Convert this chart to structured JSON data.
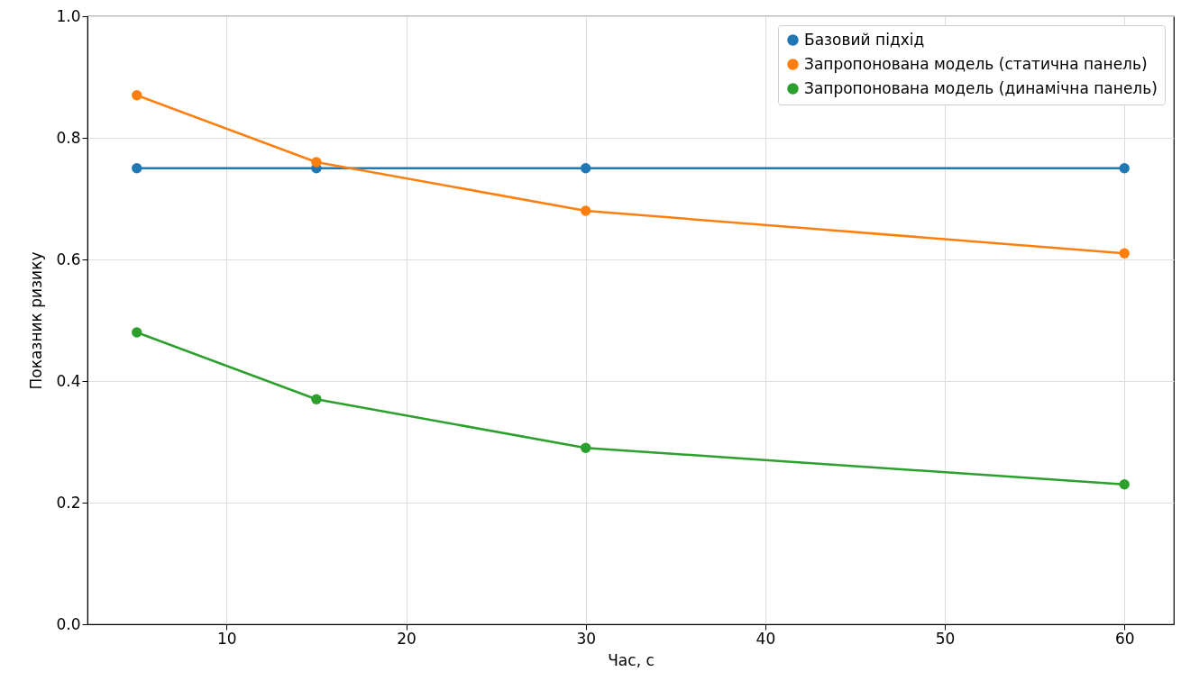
{
  "chart_data": {
    "type": "line",
    "xlabel": "Час, с",
    "ylabel": "Показник ризику",
    "x": [
      5,
      15,
      30,
      60
    ],
    "series": [
      {
        "name": "Базовий підхід",
        "color": "#1f77b4",
        "values": [
          0.75,
          0.75,
          0.75,
          0.75
        ]
      },
      {
        "name": "Запропонована модель (статична панель)",
        "color": "#ff7f0e",
        "values": [
          0.87,
          0.76,
          0.68,
          0.61
        ]
      },
      {
        "name": "Запропонована модель (динамічна панель)",
        "color": "#2ca02c",
        "values": [
          0.48,
          0.37,
          0.29,
          0.23
        ]
      }
    ],
    "xlim": [
      2.25,
      62.75
    ],
    "ylim": [
      0,
      1
    ],
    "xticks": [
      10,
      20,
      30,
      40,
      50,
      60
    ],
    "yticks": [
      {
        "value": 0,
        "label": "0.0"
      },
      {
        "value": 0.2,
        "label": "0.2"
      },
      {
        "value": 0.4,
        "label": "0.4"
      },
      {
        "value": 0.6,
        "label": "0.6"
      },
      {
        "value": 0.8,
        "label": "0.8"
      },
      {
        "value": 1,
        "label": "1.0"
      }
    ],
    "grid": true,
    "legend": "top right",
    "marker": "circle",
    "line_style": "solid"
  }
}
